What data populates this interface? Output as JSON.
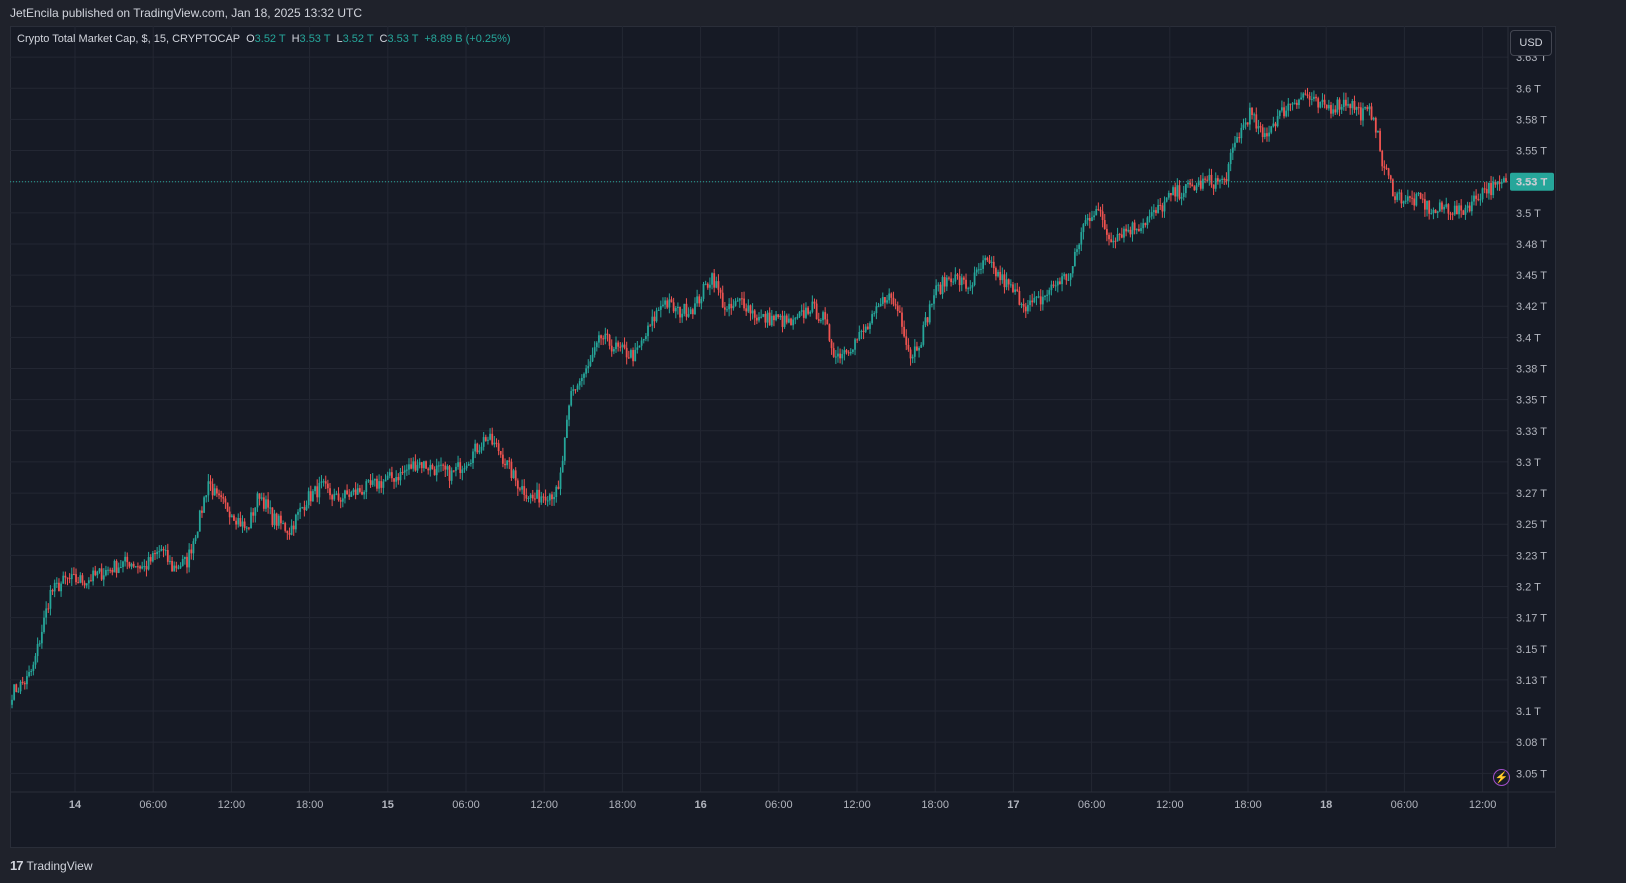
{
  "header": {
    "published_line": "JetEncila published on TradingView.com, Jan 18, 2025 13:32 UTC"
  },
  "legend": {
    "symbol": "Crypto Total Market Cap, $, 15, CRYPTOCAP",
    "o_label": "O",
    "o_value": "3.52 T",
    "h_label": "H",
    "h_value": "3.53 T",
    "l_label": "L",
    "l_value": "3.52 T",
    "c_label": "C",
    "c_value": "3.53 T",
    "change": "+8.89 B (+0.25%)"
  },
  "currency_button": "USD",
  "footer": {
    "brand": "TradingView",
    "logo_mark": "17"
  },
  "colors": {
    "up": "#26a69a",
    "down": "#ef5350",
    "background": "#161a25",
    "grid": "#232733",
    "accent_badge": "#26a69a"
  },
  "chart_data": {
    "type": "candlestick",
    "title": "Crypto Total Market Cap, $, 15, CRYPTOCAP",
    "xlabel": "",
    "ylabel": "",
    "unit": "T",
    "ylim": [
      3.04,
      3.655
    ],
    "grid": true,
    "x_tick_labels": [
      "14",
      "06:00",
      "12:00",
      "18:00",
      "15",
      "06:00",
      "12:00",
      "18:00",
      "16",
      "06:00",
      "12:00",
      "18:00",
      "17",
      "06:00",
      "12:00",
      "18:00",
      "18",
      "06:00",
      "12:00"
    ],
    "y_tick_labels": [
      "3.63 T",
      "3.6 T",
      "3.58 T",
      "3.55 T",
      "3.53 T",
      "3.5 T",
      "3.48 T",
      "3.45 T",
      "3.42 T",
      "3.4 T",
      "3.38 T",
      "3.35 T",
      "3.33 T",
      "3.3 T",
      "3.27 T",
      "3.25 T",
      "3.23 T",
      "3.2 T",
      "3.17 T",
      "3.15 T",
      "3.13 T",
      "3.1 T",
      "3.08 T",
      "3.05 T"
    ],
    "y_tick_values": [
      3.63,
      3.605,
      3.58,
      3.555,
      3.53,
      3.505,
      3.48,
      3.455,
      3.43,
      3.405,
      3.38,
      3.355,
      3.33,
      3.305,
      3.28,
      3.255,
      3.23,
      3.205,
      3.18,
      3.155,
      3.13,
      3.105,
      3.08,
      3.055
    ],
    "last_price": 3.53,
    "last_price_label": "3.53 T",
    "price_path": [
      [
        0,
        3.12
      ],
      [
        7,
        3.13
      ],
      [
        10,
        3.14
      ],
      [
        18,
        3.2
      ],
      [
        25,
        3.21
      ],
      [
        35,
        3.21
      ],
      [
        47,
        3.22
      ],
      [
        55,
        3.225
      ],
      [
        62,
        3.22
      ],
      [
        70,
        3.235
      ],
      [
        75,
        3.22
      ],
      [
        82,
        3.225
      ],
      [
        88,
        3.26
      ],
      [
        92,
        3.29
      ],
      [
        96,
        3.275
      ],
      [
        103,
        3.265
      ],
      [
        110,
        3.25
      ],
      [
        116,
        3.28
      ],
      [
        122,
        3.26
      ],
      [
        130,
        3.25
      ],
      [
        138,
        3.275
      ],
      [
        145,
        3.285
      ],
      [
        152,
        3.275
      ],
      [
        160,
        3.28
      ],
      [
        168,
        3.285
      ],
      [
        175,
        3.29
      ],
      [
        182,
        3.295
      ],
      [
        190,
        3.305
      ],
      [
        197,
        3.3
      ],
      [
        206,
        3.295
      ],
      [
        215,
        3.31
      ],
      [
        222,
        3.325
      ],
      [
        228,
        3.315
      ],
      [
        236,
        3.29
      ],
      [
        244,
        3.275
      ],
      [
        250,
        3.28
      ],
      [
        256,
        3.28
      ],
      [
        262,
        3.36
      ],
      [
        270,
        3.38
      ],
      [
        276,
        3.405
      ],
      [
        284,
        3.395
      ],
      [
        292,
        3.39
      ],
      [
        298,
        3.41
      ],
      [
        305,
        3.435
      ],
      [
        312,
        3.425
      ],
      [
        320,
        3.43
      ],
      [
        328,
        3.455
      ],
      [
        335,
        3.425
      ],
      [
        342,
        3.435
      ],
      [
        350,
        3.42
      ],
      [
        358,
        3.42
      ],
      [
        366,
        3.415
      ],
      [
        374,
        3.43
      ],
      [
        380,
        3.42
      ],
      [
        386,
        3.39
      ],
      [
        394,
        3.4
      ],
      [
        402,
        3.415
      ],
      [
        410,
        3.44
      ],
      [
        416,
        3.425
      ],
      [
        421,
        3.39
      ],
      [
        426,
        3.405
      ],
      [
        432,
        3.44
      ],
      [
        440,
        3.455
      ],
      [
        448,
        3.445
      ],
      [
        456,
        3.465
      ],
      [
        462,
        3.455
      ],
      [
        470,
        3.44
      ],
      [
        476,
        3.43
      ],
      [
        482,
        3.435
      ],
      [
        490,
        3.45
      ],
      [
        496,
        3.455
      ],
      [
        502,
        3.495
      ],
      [
        508,
        3.51
      ],
      [
        514,
        3.485
      ],
      [
        520,
        3.49
      ],
      [
        528,
        3.495
      ],
      [
        536,
        3.505
      ],
      [
        544,
        3.52
      ],
      [
        552,
        3.525
      ],
      [
        560,
        3.53
      ],
      [
        568,
        3.53
      ],
      [
        574,
        3.565
      ],
      [
        580,
        3.585
      ],
      [
        586,
        3.565
      ],
      [
        592,
        3.58
      ],
      [
        600,
        3.595
      ],
      [
        606,
        3.6
      ],
      [
        612,
        3.59
      ],
      [
        618,
        3.59
      ],
      [
        626,
        3.595
      ],
      [
        632,
        3.585
      ],
      [
        638,
        3.585
      ],
      [
        642,
        3.545
      ],
      [
        648,
        3.52
      ],
      [
        654,
        3.515
      ],
      [
        660,
        3.515
      ],
      [
        666,
        3.505
      ],
      [
        672,
        3.51
      ],
      [
        678,
        3.505
      ],
      [
        685,
        3.515
      ],
      [
        690,
        3.525
      ],
      [
        696,
        3.525
      ],
      [
        700,
        3.53
      ]
    ]
  }
}
